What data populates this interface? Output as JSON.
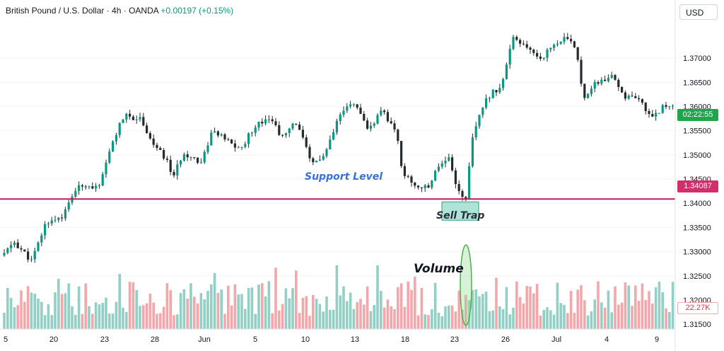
{
  "header": {
    "symbol": "British Pound / U.S. Dollar · 4h · OANDA",
    "change": "+0.00197 (+0.15%)"
  },
  "currency": "USD",
  "annotations": {
    "support": "Support Level",
    "trap": "Sell Trap",
    "volume": "Volume"
  },
  "tags": {
    "countdown": "02:22:55",
    "support_price": "1.34087",
    "volume_value": "22.27K"
  },
  "colors": {
    "up": "#089981",
    "down": "#f23645",
    "candle_body": "#26292e",
    "volume_up": "#92d0c6",
    "volume_down": "#f4a7ab",
    "support_line": "#c2185b",
    "highlight": "#4fc2a8"
  },
  "chart_data": {
    "type": "candlestick",
    "instrument": "British Pound / U.S. Dollar",
    "timeframe": "4h",
    "source": "OANDA",
    "y_ticks": [
      "1.37000",
      "1.36500",
      "1.36000",
      "1.35500",
      "1.35000",
      "1.34500",
      "1.34000",
      "1.33500",
      "1.33000",
      "1.32500",
      "1.32000",
      "1.31500"
    ],
    "ylim": [
      1.314,
      1.382
    ],
    "x_ticks": [
      "5",
      "20",
      "23",
      "28",
      "Jun",
      "5",
      "10",
      "13",
      "18",
      "23",
      "26",
      "Jul",
      "4",
      "9"
    ],
    "support_level": 1.34087,
    "close_points": [
      [
        0,
        1.3285
      ],
      [
        20,
        1.332
      ],
      [
        45,
        1.328
      ],
      [
        65,
        1.336
      ],
      [
        90,
        1.3375
      ],
      [
        105,
        1.3425
      ],
      [
        120,
        1.344
      ],
      [
        140,
        1.343
      ],
      [
        160,
        1.353
      ],
      [
        175,
        1.358
      ],
      [
        200,
        1.3575
      ],
      [
        215,
        1.3525
      ],
      [
        235,
        1.349
      ],
      [
        245,
        1.3455
      ],
      [
        260,
        1.3505
      ],
      [
        285,
        1.3485
      ],
      [
        300,
        1.355
      ],
      [
        320,
        1.353
      ],
      [
        340,
        1.351
      ],
      [
        360,
        1.356
      ],
      [
        380,
        1.358
      ],
      [
        400,
        1.3535
      ],
      [
        420,
        1.357
      ],
      [
        440,
        1.348
      ],
      [
        460,
        1.35
      ],
      [
        480,
        1.358
      ],
      [
        500,
        1.361
      ],
      [
        520,
        1.355
      ],
      [
        540,
        1.359
      ],
      [
        560,
        1.355
      ],
      [
        570,
        1.346
      ],
      [
        590,
        1.3435
      ],
      [
        605,
        1.343
      ],
      [
        620,
        1.348
      ],
      [
        635,
        1.3495
      ],
      [
        648,
        1.3425
      ],
      [
        658,
        1.3405
      ],
      [
        670,
        1.355
      ],
      [
        690,
        1.362
      ],
      [
        710,
        1.3645
      ],
      [
        725,
        1.374
      ],
      [
        745,
        1.372
      ],
      [
        765,
        1.37
      ],
      [
        785,
        1.373
      ],
      [
        800,
        1.374
      ],
      [
        815,
        1.372
      ],
      [
        825,
        1.362
      ],
      [
        845,
        1.365
      ],
      [
        865,
        1.366
      ],
      [
        885,
        1.362
      ],
      [
        905,
        1.361
      ],
      [
        920,
        1.358
      ],
      [
        940,
        1.36
      ],
      [
        955,
        1.3605
      ]
    ]
  }
}
